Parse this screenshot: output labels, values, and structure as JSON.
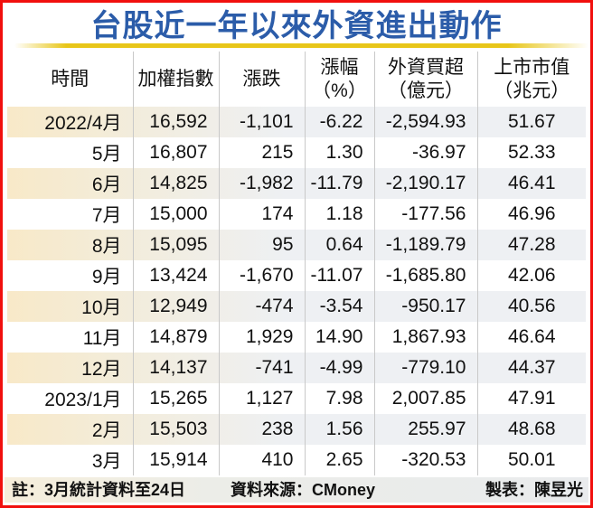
{
  "title": "台股近一年以來外資進出動作",
  "table": {
    "columns": [
      {
        "lines": [
          "時間"
        ]
      },
      {
        "lines": [
          "加權指數"
        ]
      },
      {
        "lines": [
          "漲跌"
        ]
      },
      {
        "lines": [
          "漲幅",
          "（%）"
        ]
      },
      {
        "lines": [
          "外資買超",
          "（億元）"
        ]
      },
      {
        "lines": [
          "上市市值",
          "（兆元）"
        ]
      }
    ],
    "rows": [
      [
        "2022/4月",
        "16,592",
        "-1,101",
        "-6.22",
        "-2,594.93",
        "51.67"
      ],
      [
        "5月",
        "16,807",
        "215",
        "1.30",
        "-36.97",
        "52.33"
      ],
      [
        "6月",
        "14,825",
        "-1,982",
        "-11.79",
        "-2,190.17",
        "46.41"
      ],
      [
        "7月",
        "15,000",
        "174",
        "1.18",
        "-177.56",
        "46.96"
      ],
      [
        "8月",
        "15,095",
        "95",
        "0.64",
        "-1,189.79",
        "47.28"
      ],
      [
        "9月",
        "13,424",
        "-1,670",
        "-11.07",
        "-1,685.80",
        "42.06"
      ],
      [
        "10月",
        "12,949",
        "-474",
        "-3.54",
        "-950.17",
        "40.56"
      ],
      [
        "11月",
        "14,879",
        "1,929",
        "14.90",
        "1,867.93",
        "46.64"
      ],
      [
        "12月",
        "14,137",
        "-741",
        "-4.99",
        "-779.10",
        "44.37"
      ],
      [
        "2023/1月",
        "15,265",
        "1,127",
        "7.98",
        "2,007.85",
        "47.91"
      ],
      [
        "2月",
        "15,503",
        "238",
        "1.56",
        "255.97",
        "48.68"
      ],
      [
        "3月",
        "15,914",
        "410",
        "2.65",
        "-320.53",
        "50.01"
      ]
    ]
  },
  "footer": {
    "note": "註：3月統計資料至24日",
    "source": "資料來源：CMoney",
    "credit": "製表：陳昱光"
  },
  "colors": {
    "title_blue": "#2b5ca9",
    "frame_red": "#f1100e",
    "gold_line": "#e8c619",
    "stripe_left": "#f8e9c8",
    "stripe_right": "#eef0f3",
    "divider_gray": "#c9c9c9",
    "footer_left": "#f6eedb",
    "footer_right": "#e9ebed"
  },
  "chart_data": {
    "type": "table",
    "title": "台股近一年以來外資進出動作",
    "columns": [
      "時間",
      "加權指數",
      "漲跌",
      "漲幅（%）",
      "外資買超（億元）",
      "上市市值（兆元）"
    ],
    "rows": [
      {
        "時間": "2022/4月",
        "加權指數": 16592,
        "漲跌": -1101,
        "漲幅_pct": -6.22,
        "外資買超_億元": -2594.93,
        "上市市值_兆元": 51.67
      },
      {
        "時間": "5月",
        "加權指數": 16807,
        "漲跌": 215,
        "漲幅_pct": 1.3,
        "外資買超_億元": -36.97,
        "上市市值_兆元": 52.33
      },
      {
        "時間": "6月",
        "加權指數": 14825,
        "漲跌": -1982,
        "漲幅_pct": -11.79,
        "外資買超_億元": -2190.17,
        "上市市值_兆元": 46.41
      },
      {
        "時間": "7月",
        "加權指數": 15000,
        "漲跌": 174,
        "漲幅_pct": 1.18,
        "外資買超_億元": -177.56,
        "上市市值_兆元": 46.96
      },
      {
        "時間": "8月",
        "加權指數": 15095,
        "漲跌": 95,
        "漲幅_pct": 0.64,
        "外資買超_億元": -1189.79,
        "上市市值_兆元": 47.28
      },
      {
        "時間": "9月",
        "加權指數": 13424,
        "漲跌": -1670,
        "漲幅_pct": -11.07,
        "外資買超_億元": -1685.8,
        "上市市值_兆元": 42.06
      },
      {
        "時間": "10月",
        "加權指數": 12949,
        "漲跌": -474,
        "漲幅_pct": -3.54,
        "外資買超_億元": -950.17,
        "上市市值_兆元": 40.56
      },
      {
        "時間": "11月",
        "加權指數": 14879,
        "漲跌": 1929,
        "漲幅_pct": 14.9,
        "外資買超_億元": 1867.93,
        "上市市值_兆元": 46.64
      },
      {
        "時間": "12月",
        "加權指數": 14137,
        "漲跌": -741,
        "漲幅_pct": -4.99,
        "外資買超_億元": -779.1,
        "上市市值_兆元": 44.37
      },
      {
        "時間": "2023/1月",
        "加權指數": 15265,
        "漲跌": 1127,
        "漲幅_pct": 7.98,
        "外資買超_億元": 2007.85,
        "上市市值_兆元": 47.91
      },
      {
        "時間": "2月",
        "加權指數": 15503,
        "漲跌": 238,
        "漲幅_pct": 1.56,
        "外資買超_億元": 255.97,
        "上市市值_兆元": 48.68
      },
      {
        "時間": "3月",
        "加權指數": 15914,
        "漲跌": 410,
        "漲幅_pct": 2.65,
        "外資買超_億元": -320.53,
        "上市市值_兆元": 50.01
      }
    ],
    "notes": [
      "註：3月統計資料至24日",
      "資料來源：CMoney",
      "製表：陳昱光"
    ]
  }
}
